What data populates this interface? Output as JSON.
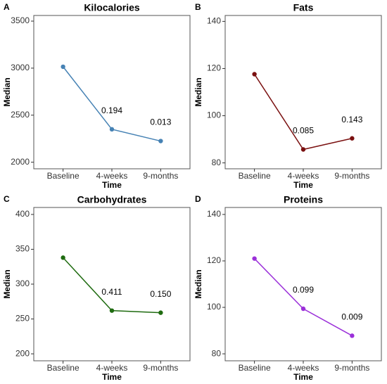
{
  "chart_data": [
    {
      "type": "line",
      "panel_label": "A",
      "title": "Kilocalories",
      "xlabel": "Time",
      "ylabel": "Median",
      "categories": [
        "Baseline",
        "4-weeks",
        "9-months"
      ],
      "values": [
        3015,
        2350,
        2225
      ],
      "annotations": [
        null,
        "0.194",
        "0.013"
      ],
      "color": "#4682b4",
      "ylim": [
        1930,
        3560
      ],
      "yticks": [
        2000,
        2500,
        3000,
        3500
      ]
    },
    {
      "type": "line",
      "panel_label": "B",
      "title": "Fats",
      "xlabel": "Time",
      "ylabel": "Median",
      "categories": [
        "Baseline",
        "4-weeks",
        "9-months"
      ],
      "values": [
        117.6,
        85.7,
        90.4
      ],
      "annotations": [
        null,
        "0.085",
        "0.143"
      ],
      "color": "#7a1010",
      "ylim": [
        77.5,
        142.5
      ],
      "yticks": [
        80,
        100,
        120,
        140
      ]
    },
    {
      "type": "line",
      "panel_label": "C",
      "title": "Carbohydrates",
      "xlabel": "Time",
      "ylabel": "Median",
      "categories": [
        "Baseline",
        "4-weeks",
        "9-months"
      ],
      "values": [
        338,
        262,
        259
      ],
      "annotations": [
        null,
        "0.411",
        "0.150"
      ],
      "color": "#1f6b10",
      "ylim": [
        190,
        410
      ],
      "yticks": [
        200,
        250,
        300,
        350,
        400
      ]
    },
    {
      "type": "line",
      "panel_label": "D",
      "title": "Proteins",
      "xlabel": "Time",
      "ylabel": "Median",
      "categories": [
        "Baseline",
        "4-weeks",
        "9-months"
      ],
      "values": [
        121,
        99.4,
        87.8
      ],
      "annotations": [
        null,
        "0.099",
        "0.009"
      ],
      "color": "#9b30d9",
      "ylim": [
        77,
        143
      ],
      "yticks": [
        80,
        100,
        120,
        140
      ]
    }
  ]
}
